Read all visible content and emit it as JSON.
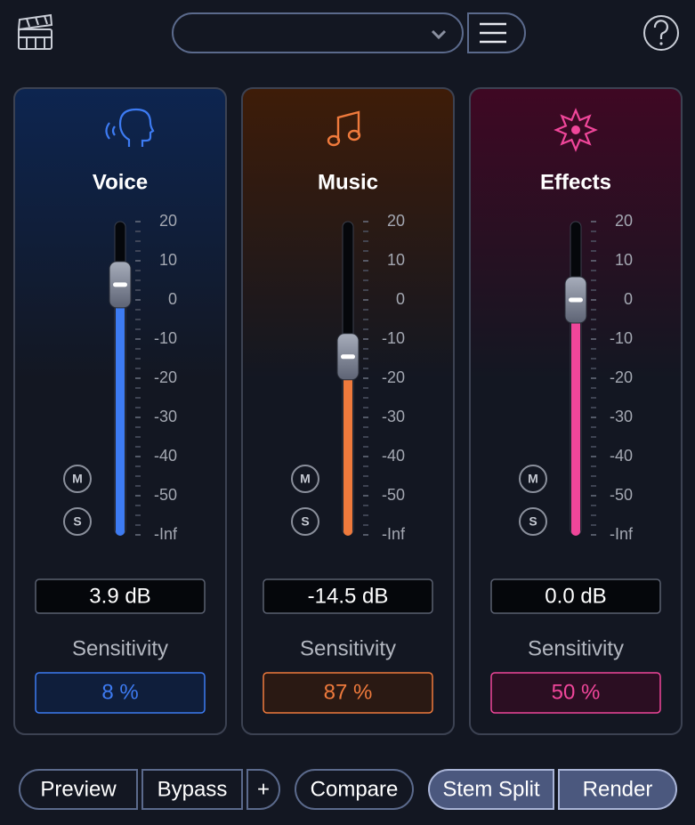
{
  "scale": {
    "ticks": [
      20,
      10,
      0,
      -10,
      -20,
      -30,
      -40,
      -50,
      {
        "value": -60,
        "label": "-Inf"
      }
    ]
  },
  "channels": [
    {
      "name": "Voice",
      "level": 3.9,
      "level_label": "3.9 dB",
      "mute": "M",
      "solo": "S",
      "sensitivity_title": "Sensitivity",
      "sensitivity": "8 %",
      "color": "#3d7bf2",
      "tint": "#0d2550"
    },
    {
      "name": "Music",
      "level": -14.5,
      "level_label": "-14.5 dB",
      "mute": "M",
      "solo": "S",
      "sensitivity_title": "Sensitivity",
      "sensitivity": "87 %",
      "color": "#ef7a3c",
      "tint": "#3e1c08"
    },
    {
      "name": "Effects",
      "level": 0.0,
      "level_label": "0.0 dB",
      "mute": "M",
      "solo": "S",
      "sensitivity_title": "Sensitivity",
      "sensitivity": "50 %",
      "color": "#f0469a",
      "tint": "#3f0823"
    }
  ],
  "buttons": [
    "Preview",
    "Bypass",
    "+",
    "Compare",
    "Stem Split",
    "Render"
  ]
}
